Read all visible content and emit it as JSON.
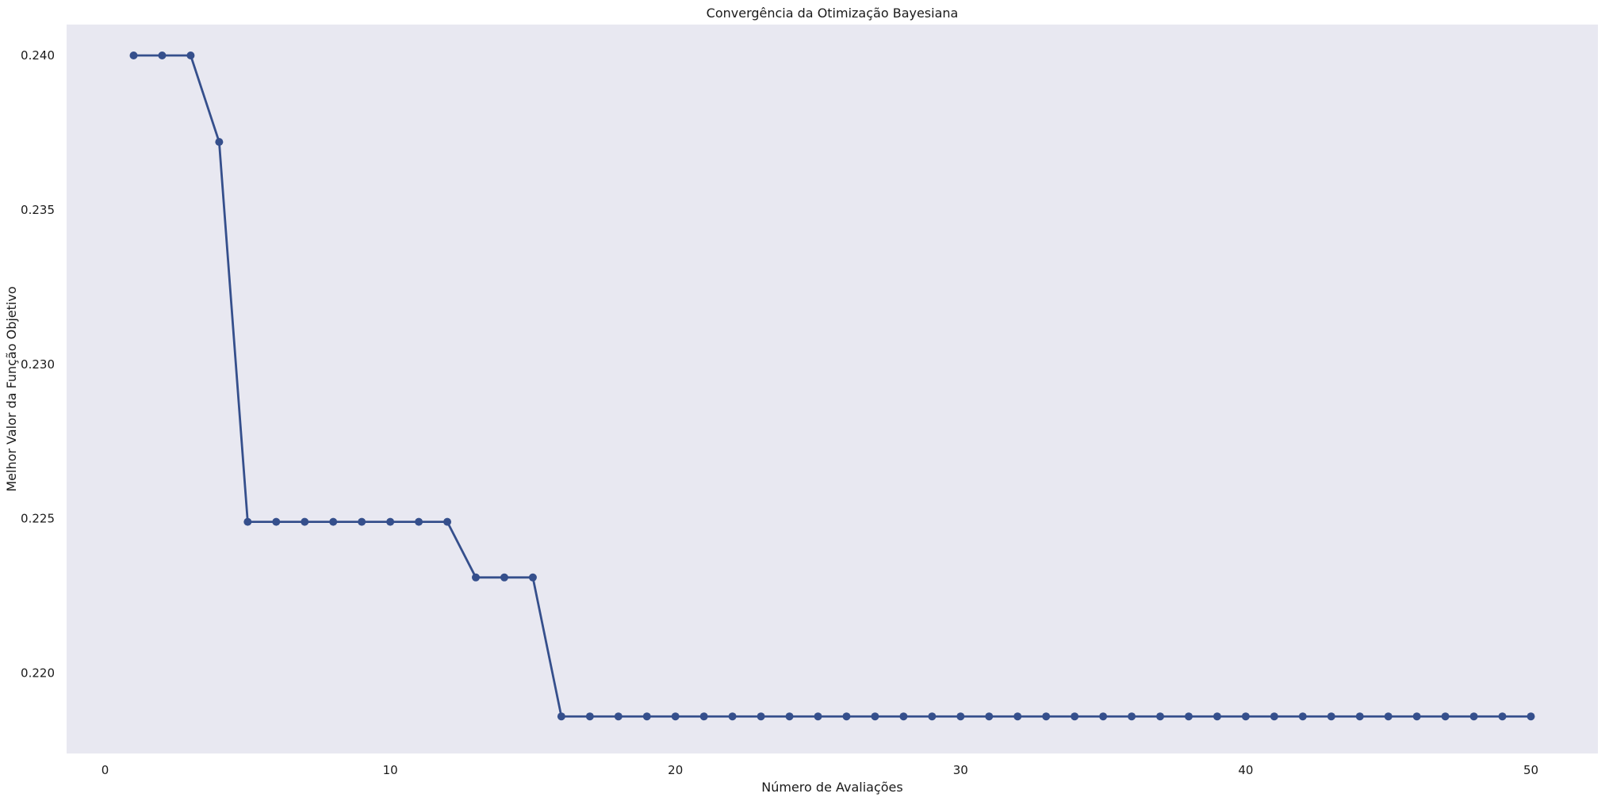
{
  "chart_data": {
    "type": "line",
    "title": "Convergência da Otimização Bayesiana",
    "xlabel": "Número de Avaliações",
    "ylabel": "Melhor Valor da Função Objetivo",
    "xlim": [
      -1.35,
      52.35
    ],
    "ylim": [
      0.2174,
      0.241
    ],
    "xticks": [
      0,
      10,
      20,
      30,
      40,
      50
    ],
    "yticks": [
      0.22,
      0.225,
      0.23,
      0.235,
      0.24
    ],
    "xtick_labels": [
      "0",
      "10",
      "20",
      "30",
      "40",
      "50"
    ],
    "ytick_labels": [
      "0.220",
      "0.225",
      "0.230",
      "0.235",
      "0.240"
    ],
    "grid": false,
    "background_color": "#e8e8f1",
    "series": [
      {
        "color": "#354f8c",
        "marker": "circle",
        "x": [
          1,
          2,
          3,
          4,
          5,
          6,
          7,
          8,
          9,
          10,
          11,
          12,
          13,
          14,
          15,
          16,
          17,
          18,
          19,
          20,
          21,
          22,
          23,
          24,
          25,
          26,
          27,
          28,
          29,
          30,
          31,
          32,
          33,
          34,
          35,
          36,
          37,
          38,
          39,
          40,
          41,
          42,
          43,
          44,
          45,
          46,
          47,
          48,
          49,
          50
        ],
        "y": [
          0.24,
          0.24,
          0.24,
          0.2372,
          0.2249,
          0.2249,
          0.2249,
          0.2249,
          0.2249,
          0.2249,
          0.2249,
          0.2249,
          0.2231,
          0.2231,
          0.2231,
          0.2186,
          0.2186,
          0.2186,
          0.2186,
          0.2186,
          0.2186,
          0.2186,
          0.2186,
          0.2186,
          0.2186,
          0.2186,
          0.2186,
          0.2186,
          0.2186,
          0.2186,
          0.2186,
          0.2186,
          0.2186,
          0.2186,
          0.2186,
          0.2186,
          0.2186,
          0.2186,
          0.2186,
          0.2186,
          0.2186,
          0.2186,
          0.2186,
          0.2186,
          0.2186,
          0.2186,
          0.2186,
          0.2186,
          0.2186,
          0.2186
        ]
      }
    ]
  }
}
